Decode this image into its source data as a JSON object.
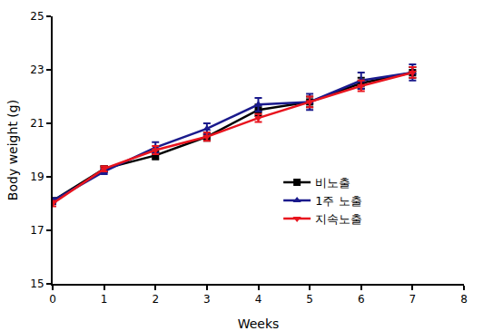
{
  "chart_data": {
    "type": "line",
    "x_label": "Weeks",
    "y_label": "Body weight (g)",
    "x": [
      0,
      1,
      2,
      3,
      4,
      5,
      6,
      7
    ],
    "xlim": [
      0,
      8
    ],
    "xticks": [
      0,
      1,
      2,
      3,
      4,
      5,
      6,
      7,
      8
    ],
    "ylim": [
      15,
      25
    ],
    "yticks": [
      15,
      17,
      19,
      21,
      23,
      25
    ],
    "grid": false,
    "legend": "right",
    "series": [
      {
        "name": "비노출",
        "color": "#000000",
        "marker": "square",
        "values": [
          18.1,
          19.3,
          19.8,
          20.5,
          21.5,
          21.8,
          22.5,
          22.9
        ],
        "errors": [
          0.1,
          0.1,
          0.15,
          0.15,
          0.2,
          0.2,
          0.2,
          0.2
        ]
      },
      {
        "name": "1주 노출",
        "color": "#1a1a8c",
        "marker": "triangle-up",
        "values": [
          18.1,
          19.2,
          20.1,
          20.8,
          21.7,
          21.8,
          22.6,
          22.9
        ],
        "errors": [
          0.1,
          0.1,
          0.2,
          0.2,
          0.25,
          0.3,
          0.3,
          0.3
        ]
      },
      {
        "name": "지속노출",
        "color": "#e8141e",
        "marker": "triangle-down",
        "values": [
          18.0,
          19.3,
          20.0,
          20.5,
          21.2,
          21.8,
          22.4,
          22.9
        ],
        "errors": [
          0.1,
          0.1,
          0.15,
          0.15,
          0.15,
          0.2,
          0.2,
          0.2
        ]
      }
    ]
  }
}
